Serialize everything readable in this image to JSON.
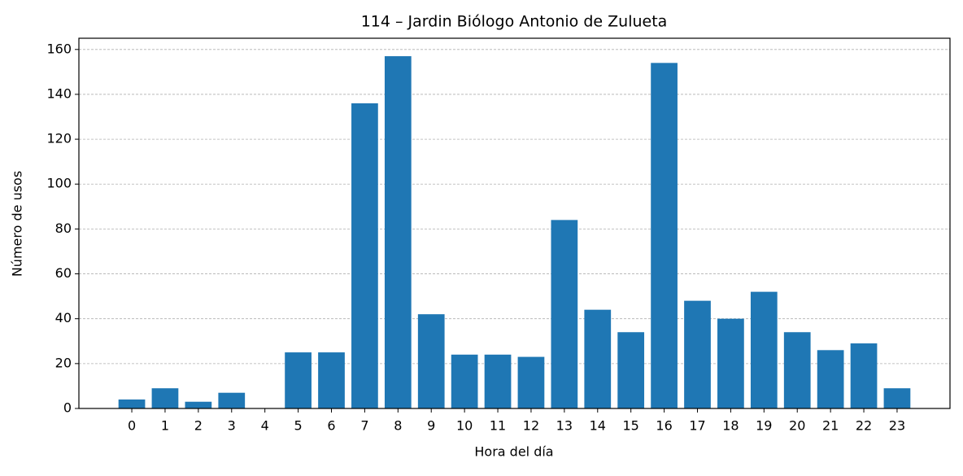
{
  "chart_data": {
    "type": "bar",
    "title": "114 – Jardin Biólogo Antonio de Zulueta",
    "x_label": "Hora del día",
    "y_label": "Número de usos",
    "x": [
      0,
      1,
      2,
      3,
      4,
      5,
      6,
      7,
      8,
      9,
      10,
      11,
      12,
      13,
      14,
      15,
      16,
      17,
      18,
      19,
      20,
      21,
      22,
      23
    ],
    "values": [
      4,
      9,
      3,
      7,
      0,
      25,
      25,
      136,
      157,
      42,
      24,
      24,
      23,
      84,
      44,
      34,
      154,
      48,
      40,
      52,
      34,
      26,
      29,
      9
    ],
    "color": "#1f77b4",
    "xlim": [
      -1.59,
      24.59
    ],
    "xticks": [
      0,
      1,
      2,
      3,
      4,
      5,
      6,
      7,
      8,
      9,
      10,
      11,
      12,
      13,
      14,
      15,
      16,
      17,
      18,
      19,
      20,
      21,
      22,
      23
    ],
    "ylim": [
      0,
      165
    ],
    "yticks": [
      0,
      20,
      40,
      60,
      80,
      100,
      120,
      140,
      160
    ],
    "grid": true
  }
}
